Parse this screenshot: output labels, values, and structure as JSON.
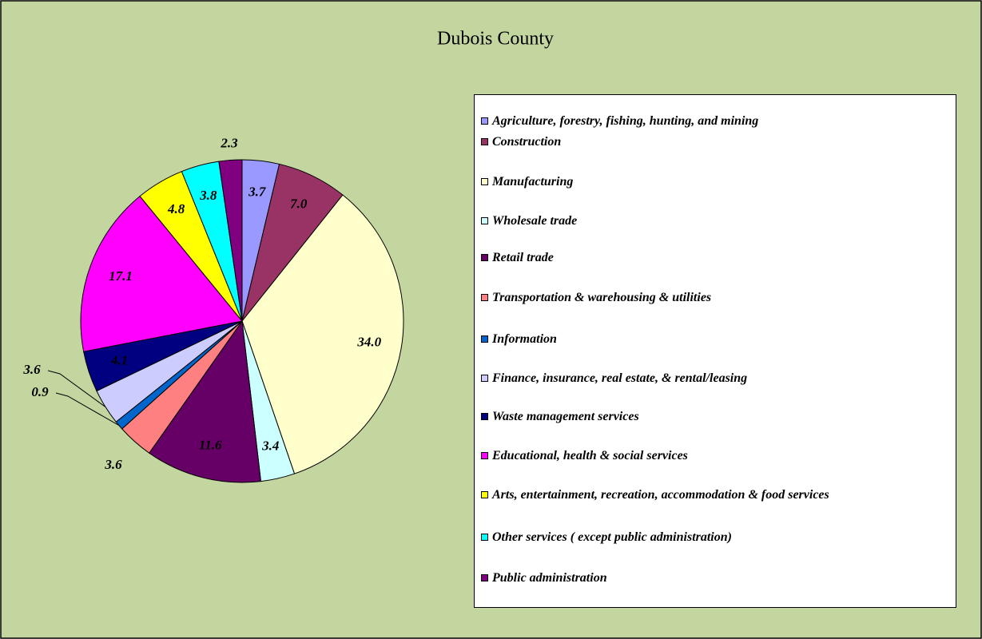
{
  "chart_data": {
    "type": "pie",
    "title": "Dubois County",
    "categories": [
      "Agriculture, forestry, fishing, hunting, and mining",
      "Construction",
      "Manufacturing",
      "Wholesale trade",
      "Retail trade",
      "Transportation & warehousing & utilities",
      "Information",
      "Finance, insurance, real estate, & rental/leasing",
      "Waste management services",
      "Educational, health & social services",
      "Arts, entertainment, recreation, accommodation & food services",
      "Other services ( except public administration)",
      "Public administration"
    ],
    "values": [
      3.7,
      7.0,
      34.0,
      3.4,
      11.6,
      3.6,
      0.9,
      3.6,
      4.1,
      17.1,
      4.8,
      3.8,
      2.3
    ],
    "value_labels": [
      "3.7",
      "7.0",
      "34.0",
      "3.4",
      "11.6",
      "3.6",
      "0.9",
      "3.6",
      "4.1",
      "17.1",
      "4.8",
      "3.8",
      "2.3"
    ],
    "colors": [
      "#9999ff",
      "#993366",
      "#ffffcc",
      "#ccffff",
      "#660066",
      "#ff8080",
      "#0066cc",
      "#ccccff",
      "#000080",
      "#ff00ff",
      "#ffff00",
      "#00ffff",
      "#800080"
    ],
    "legend": "right"
  }
}
